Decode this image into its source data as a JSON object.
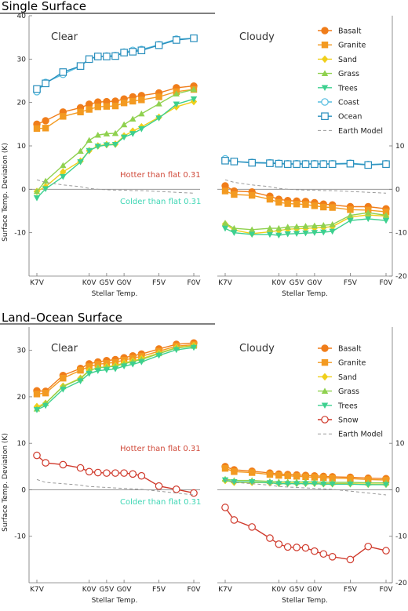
{
  "colors": {
    "Basalt": "#f07d1a",
    "Granite": "#f39a21",
    "Sand": "#f0cf1a",
    "Grass": "#8fd14f",
    "Trees": "#3dd08f",
    "Coast": "#56bde0",
    "Ocean": "#2a8fbd",
    "Snow": "#d03a2c",
    "Earth Model": "#9a9a9a",
    "hotter": "#d04a3a",
    "colder": "#3ed6b4"
  },
  "markers": {
    "Basalt": "circle",
    "Granite": "square",
    "Sand": "diamond",
    "Grass": "triangle-up",
    "Trees": "triangle-down",
    "Coast": "open-circle",
    "Ocean": "open-square",
    "Snow": "open-circle",
    "Earth Model": "dashed-line"
  },
  "sections": [
    {
      "title": "Single Surface",
      "ylabel": "Surface Temp. Deviation (K)"
    },
    {
      "title": "Land–Ocean Surface",
      "ylabel": "Surface Temp. Deviation (K)"
    }
  ],
  "xaxis": {
    "label": "Stellar Temp.",
    "ticks": [
      "K7V",
      "K0V",
      "G5V",
      "G0V",
      "F5V",
      "F0V"
    ],
    "tick_x": [
      0,
      3,
      4,
      5,
      7,
      9
    ]
  },
  "chart_data": [
    {
      "type": "line",
      "panel": "Single Surface — Clear",
      "label": "Clear",
      "x": [
        0,
        0.5,
        1.5,
        2.5,
        3,
        3.5,
        4,
        4.5,
        5,
        5.5,
        6,
        7,
        8,
        9
      ],
      "ylim": [
        -20,
        40
      ],
      "yticks": [
        -10,
        0,
        10,
        20,
        30,
        40
      ],
      "yaxis_side": "left",
      "annotations": [
        {
          "text": "Hotter than flat 0.31",
          "color": "hotter"
        },
        {
          "text": "Colder than flat 0.31",
          "color": "colder"
        }
      ],
      "series": [
        {
          "name": "Basalt",
          "values": [
            15,
            15.8,
            17.8,
            18.8,
            19.6,
            20.1,
            20.2,
            20.3,
            20.8,
            21.3,
            21.6,
            22.2,
            23.4,
            23.8
          ]
        },
        {
          "name": "Granite",
          "values": [
            14,
            14.1,
            16.8,
            17.8,
            18.4,
            19.0,
            19.1,
            19.2,
            19.9,
            20.3,
            20.6,
            21.3,
            22.5,
            23.0
          ]
        },
        {
          "name": "Sand",
          "values": [
            -0.5,
            0.6,
            4.0,
            6.5,
            8.9,
            10.0,
            10.3,
            10.4,
            12.3,
            13.4,
            14.4,
            16.6,
            19.0,
            20.2
          ]
        },
        {
          "name": "Grass",
          "values": [
            -0.5,
            1.9,
            5.5,
            8.8,
            11.3,
            12.5,
            12.8,
            12.9,
            14.9,
            16.2,
            17.4,
            19.7,
            22.0,
            23.0
          ]
        },
        {
          "name": "Trees",
          "values": [
            -2.0,
            0.1,
            2.9,
            6.3,
            8.9,
            9.9,
            10.2,
            10.3,
            12.0,
            12.8,
            13.9,
            16.4,
            19.6,
            20.8
          ]
        },
        {
          "name": "Coast",
          "values": [
            22.5,
            24.6,
            26.5,
            28.4,
            30.0,
            30.6,
            30.7,
            30.8,
            31.6,
            32.0,
            32.2,
            33.3,
            34.6,
            34.8
          ]
        },
        {
          "name": "Ocean",
          "values": [
            23.1,
            24.4,
            27.0,
            28.4,
            30.0,
            30.6,
            30.6,
            30.7,
            31.5,
            31.7,
            32.0,
            33.2,
            34.4,
            34.8
          ]
        },
        {
          "name": "Earth Model",
          "values": [
            2.2,
            1.6,
            1.0,
            0.6,
            0.2,
            0.0,
            -0.1,
            -0.2,
            -0.2,
            -0.3,
            -0.3,
            -0.5,
            -0.7,
            -0.9
          ]
        }
      ]
    },
    {
      "type": "line",
      "panel": "Single Surface — Cloudy",
      "label": "Cloudy",
      "x": [
        0,
        0.5,
        1.5,
        2.5,
        3,
        3.5,
        4,
        4.5,
        5,
        5.5,
        6,
        7,
        8,
        9
      ],
      "ylim": [
        -20,
        40
      ],
      "yticks": [
        -20,
        -10,
        0,
        10
      ],
      "yaxis_side": "right",
      "series": [
        {
          "name": "Basalt",
          "values": [
            0.8,
            -0.4,
            -0.6,
            -1.6,
            -2.3,
            -2.6,
            -2.7,
            -2.8,
            -3.1,
            -3.4,
            -3.6,
            -4.0,
            -4.0,
            -4.5
          ]
        },
        {
          "name": "Granite",
          "values": [
            -0.4,
            -1.2,
            -1.4,
            -2.3,
            -3.0,
            -3.3,
            -3.4,
            -3.5,
            -3.8,
            -4.1,
            -4.2,
            -4.7,
            -4.8,
            -5.2
          ]
        },
        {
          "name": "Sand",
          "values": [
            -8.0,
            -9.4,
            -10.2,
            -9.8,
            -9.5,
            -9.2,
            -9.1,
            -9.0,
            -8.9,
            -8.8,
            -8.6,
            -6.4,
            -5.9,
            -6.2
          ]
        },
        {
          "name": "Grass",
          "values": [
            -7.8,
            -9.0,
            -9.3,
            -9.0,
            -9.0,
            -8.7,
            -8.6,
            -8.5,
            -8.4,
            -8.3,
            -8.1,
            -6.0,
            -5.4,
            -6.0
          ]
        },
        {
          "name": "Trees",
          "values": [
            -9.0,
            -10.0,
            -10.4,
            -10.4,
            -10.6,
            -10.3,
            -10.2,
            -10.1,
            -10.0,
            -9.9,
            -9.7,
            -7.2,
            -6.8,
            -7.2
          ]
        },
        {
          "name": "Coast",
          "values": [
            7.0,
            6.4,
            6.2,
            6.1,
            6.0,
            5.9,
            5.9,
            5.9,
            5.9,
            5.9,
            5.9,
            6.0,
            5.7,
            5.9
          ]
        },
        {
          "name": "Ocean",
          "values": [
            6.6,
            6.4,
            6.1,
            6.0,
            5.9,
            5.8,
            5.8,
            5.8,
            5.8,
            5.8,
            5.8,
            5.9,
            5.6,
            5.8
          ]
        },
        {
          "name": "Earth Model",
          "values": [
            2.2,
            1.6,
            1.0,
            0.6,
            0.2,
            0.0,
            -0.1,
            -0.2,
            -0.2,
            -0.3,
            -0.3,
            -0.5,
            -0.7,
            -0.9
          ]
        }
      ]
    },
    {
      "type": "line",
      "panel": "Land–Ocean Surface — Clear",
      "label": "Clear",
      "x": [
        0,
        0.5,
        1.5,
        2.5,
        3,
        3.5,
        4,
        4.5,
        5,
        5.5,
        6,
        7,
        8,
        9
      ],
      "ylim": [
        -20,
        35
      ],
      "yticks": [
        -10,
        0,
        10,
        20,
        30
      ],
      "yaxis_side": "left",
      "annotations": [
        {
          "text": "Hotter than flat 0.31",
          "color": "hotter"
        },
        {
          "text": "Colder than flat 0.31",
          "color": "colder"
        }
      ],
      "series": [
        {
          "name": "Basalt",
          "values": [
            21.3,
            21.2,
            24.6,
            26.1,
            27.1,
            27.5,
            27.8,
            28.0,
            28.4,
            28.8,
            29.2,
            30.3,
            31.3,
            31.6
          ]
        },
        {
          "name": "Granite",
          "values": [
            20.6,
            20.8,
            24.0,
            25.7,
            26.5,
            27.0,
            27.2,
            27.4,
            27.9,
            28.3,
            28.7,
            29.8,
            30.9,
            31.2
          ]
        },
        {
          "name": "Sand",
          "values": [
            17.9,
            18.6,
            22.3,
            24.0,
            25.7,
            26.2,
            26.5,
            26.7,
            27.3,
            27.7,
            28.2,
            29.4,
            30.6,
            31.0
          ]
        },
        {
          "name": "Grass",
          "values": [
            17.4,
            18.6,
            22.2,
            23.9,
            25.6,
            26.3,
            26.4,
            26.6,
            27.1,
            27.6,
            28.0,
            29.3,
            30.5,
            30.9
          ]
        },
        {
          "name": "Trees",
          "values": [
            17.2,
            18.1,
            21.6,
            23.4,
            25.0,
            25.6,
            25.8,
            26.0,
            26.6,
            27.0,
            27.5,
            28.9,
            30.1,
            30.6
          ]
        },
        {
          "name": "Snow",
          "values": [
            7.4,
            5.8,
            5.4,
            4.7,
            3.9,
            3.7,
            3.6,
            3.6,
            3.6,
            3.4,
            3.0,
            0.8,
            0.1,
            -0.7
          ]
        },
        {
          "name": "Earth Model",
          "values": [
            2.2,
            1.6,
            1.3,
            1.0,
            0.7,
            0.6,
            0.5,
            0.4,
            0.3,
            0.2,
            0.1,
            -0.3,
            -0.7,
            -1.1
          ]
        }
      ]
    },
    {
      "type": "line",
      "panel": "Land–Ocean Surface — Cloudy",
      "label": "Cloudy",
      "x": [
        0,
        0.5,
        1.5,
        2.5,
        3,
        3.5,
        4,
        4.5,
        5,
        5.5,
        6,
        7,
        8,
        9
      ],
      "ylim": [
        -20,
        35
      ],
      "yticks": [
        -20,
        -10,
        0,
        10
      ],
      "yaxis_side": "right",
      "series": [
        {
          "name": "Basalt",
          "values": [
            5.0,
            4.3,
            4.0,
            3.6,
            3.4,
            3.3,
            3.2,
            3.1,
            3.0,
            2.9,
            2.8,
            2.7,
            2.5,
            2.4
          ]
        },
        {
          "name": "Granite",
          "values": [
            4.6,
            3.9,
            3.7,
            3.3,
            3.1,
            3.0,
            2.9,
            2.8,
            2.7,
            2.6,
            2.5,
            2.4,
            2.2,
            2.1
          ]
        },
        {
          "name": "Sand",
          "values": [
            2.0,
            1.6,
            1.6,
            1.5,
            1.4,
            1.4,
            1.4,
            1.4,
            1.4,
            1.3,
            1.3,
            1.3,
            1.2,
            1.2
          ]
        },
        {
          "name": "Grass",
          "values": [
            2.3,
            2.0,
            2.0,
            1.8,
            1.7,
            1.7,
            1.7,
            1.7,
            1.7,
            1.6,
            1.6,
            1.6,
            1.5,
            1.5
          ]
        },
        {
          "name": "Trees",
          "values": [
            2.1,
            1.7,
            1.7,
            1.5,
            1.3,
            1.3,
            1.3,
            1.3,
            1.3,
            1.2,
            1.2,
            1.2,
            1.1,
            1.1
          ]
        },
        {
          "name": "Snow",
          "values": [
            -3.8,
            -6.5,
            -8.0,
            -10.4,
            -11.7,
            -12.3,
            -12.4,
            -12.5,
            -13.2,
            -13.8,
            -14.4,
            -15.0,
            -12.2,
            -13.1
          ]
        },
        {
          "name": "Earth Model",
          "values": [
            2.2,
            1.6,
            1.3,
            1.0,
            0.7,
            0.6,
            0.5,
            0.4,
            0.3,
            0.2,
            0.1,
            -0.3,
            -0.7,
            -1.1
          ]
        }
      ]
    }
  ],
  "legends": [
    [
      "Basalt",
      "Granite",
      "Sand",
      "Grass",
      "Trees",
      "Coast",
      "Ocean",
      "Earth Model"
    ],
    [
      "Basalt",
      "Granite",
      "Sand",
      "Grass",
      "Trees",
      "Snow",
      "Earth Model"
    ]
  ]
}
